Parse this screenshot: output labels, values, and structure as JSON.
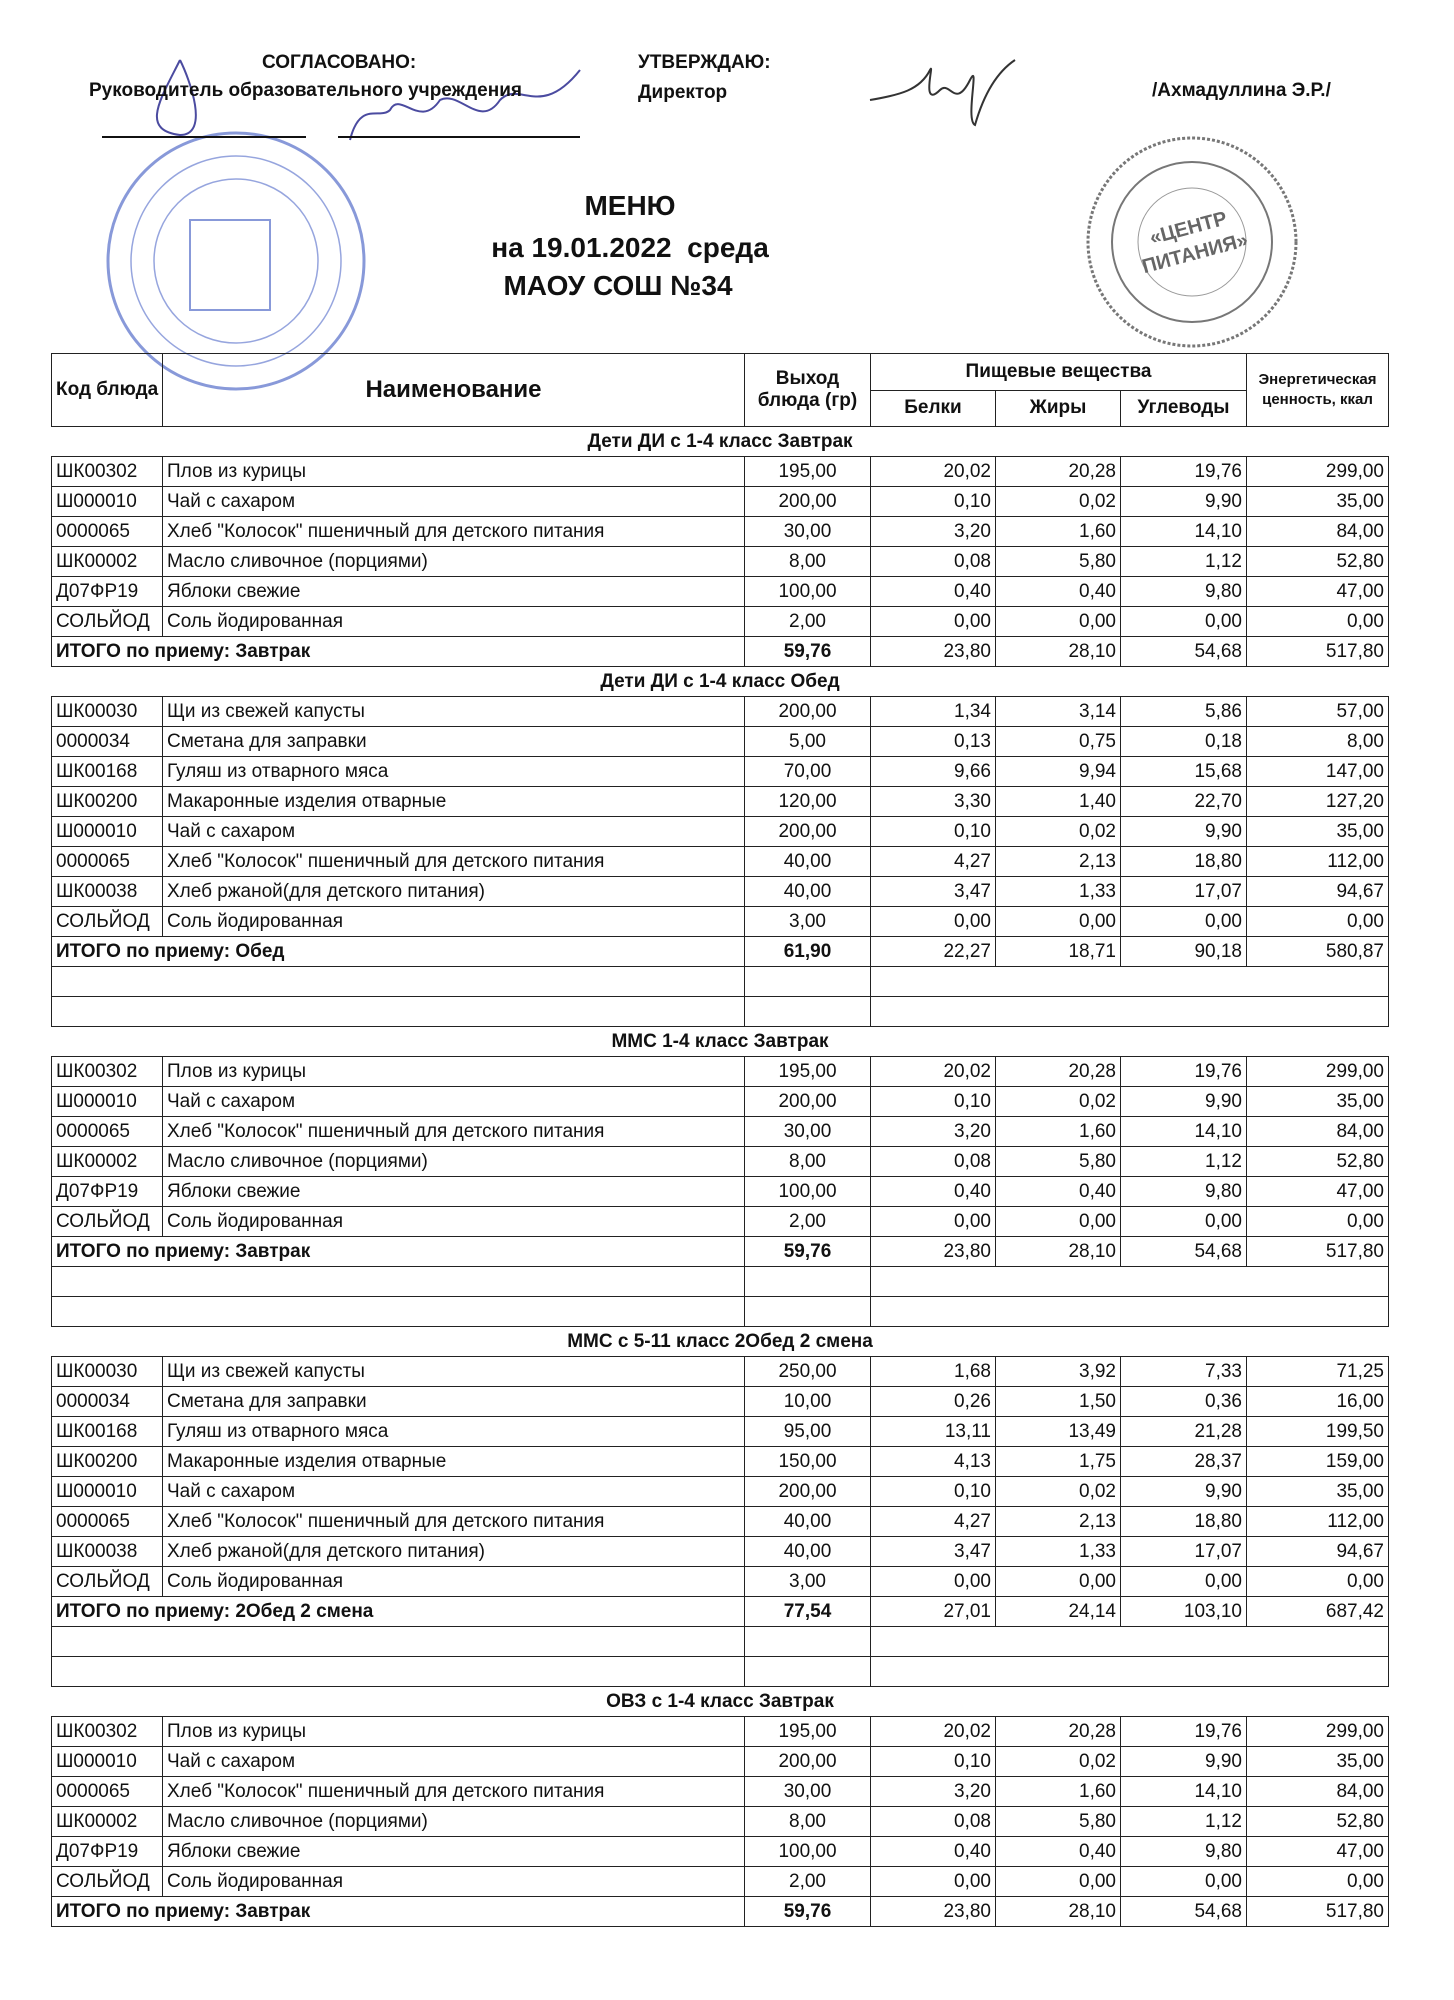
{
  "approval": {
    "agreed_label": "СОГЛАСОВАНО:",
    "agreed_role": "Руководитель образовательного учреждения",
    "approve_label": "УТВЕРЖДАЮ:",
    "approve_role": "Директор",
    "director_name": "/Ахмадуллина Э.Р./"
  },
  "stamp_text": "«ЦЕНТР ПИТАНИЯ»",
  "title": {
    "line1": "МЕНЮ",
    "line2": "на 19.01.2022  среда",
    "line3": "МАОУ СОШ №34"
  },
  "colors": {
    "stamp_blue": "#6a7fd0",
    "stamp_gray": "#777777"
  },
  "table": {
    "headers": {
      "code": "Код блюда",
      "name": "Наименование",
      "yield": "Выход блюда (гр)",
      "nutrients": "Пищевые вещества",
      "protein": "Белки",
      "fat": "Жиры",
      "carbs": "Углеводы",
      "energy": "Энергетическая ценность, ккал"
    },
    "sections": [
      {
        "title": "Дети ДИ с 1-4 класс Завтрак",
        "rows": [
          [
            "ШК00302",
            "Плов из курицы",
            "195,00",
            "20,02",
            "20,28",
            "19,76",
            "299,00"
          ],
          [
            "Ш000010",
            "Чай с сахаром",
            "200,00",
            "0,10",
            "0,02",
            "9,90",
            "35,00"
          ],
          [
            "0000065",
            "Хлеб \"Колосок\" пшеничный для детского питания",
            "30,00",
            "3,20",
            "1,60",
            "14,10",
            "84,00"
          ],
          [
            "ШК00002",
            "Масло сливочное (порциями)",
            "8,00",
            "0,08",
            "5,80",
            "1,12",
            "52,80"
          ],
          [
            "Д07ФР19",
            "Яблоки свежие",
            "100,00",
            "0,40",
            "0,40",
            "9,80",
            "47,00"
          ],
          [
            "СОЛЬЙОД",
            "Соль йодированная",
            "2,00",
            "0,00",
            "0,00",
            "0,00",
            "0,00"
          ]
        ],
        "total": [
          "ИТОГО по приему: Завтрак",
          "59,76",
          "23,80",
          "28,10",
          "54,68",
          "517,80"
        ],
        "blank_rows": 0
      },
      {
        "title": "Дети ДИ с 1-4 класс Обед",
        "rows": [
          [
            "ШК00030",
            "Щи из свежей капусты",
            "200,00",
            "1,34",
            "3,14",
            "5,86",
            "57,00"
          ],
          [
            "0000034",
            "Сметана для заправки",
            "5,00",
            "0,13",
            "0,75",
            "0,18",
            "8,00"
          ],
          [
            "ШК00168",
            "Гуляш из отварного мяса",
            "70,00",
            "9,66",
            "9,94",
            "15,68",
            "147,00"
          ],
          [
            "ШК00200",
            "Макаронные изделия отварные",
            "120,00",
            "3,30",
            "1,40",
            "22,70",
            "127,20"
          ],
          [
            "Ш000010",
            "Чай с сахаром",
            "200,00",
            "0,10",
            "0,02",
            "9,90",
            "35,00"
          ],
          [
            "0000065",
            "Хлеб \"Колосок\" пшеничный для детского питания",
            "40,00",
            "4,27",
            "2,13",
            "18,80",
            "112,00"
          ],
          [
            "ШК00038",
            "Хлеб ржаной(для детского питания)",
            "40,00",
            "3,47",
            "1,33",
            "17,07",
            "94,67"
          ],
          [
            "СОЛЬЙОД",
            "Соль йодированная",
            "3,00",
            "0,00",
            "0,00",
            "0,00",
            "0,00"
          ]
        ],
        "total": [
          "ИТОГО по приему: Обед",
          "61,90",
          "22,27",
          "18,71",
          "90,18",
          "580,87"
        ],
        "blank_rows": 2
      },
      {
        "title": "ММС 1-4 класс Завтрак",
        "rows": [
          [
            "ШК00302",
            "Плов из курицы",
            "195,00",
            "20,02",
            "20,28",
            "19,76",
            "299,00"
          ],
          [
            "Ш000010",
            "Чай с сахаром",
            "200,00",
            "0,10",
            "0,02",
            "9,90",
            "35,00"
          ],
          [
            "0000065",
            "Хлеб \"Колосок\" пшеничный для детского питания",
            "30,00",
            "3,20",
            "1,60",
            "14,10",
            "84,00"
          ],
          [
            "ШК00002",
            "Масло сливочное (порциями)",
            "8,00",
            "0,08",
            "5,80",
            "1,12",
            "52,80"
          ],
          [
            "Д07ФР19",
            "Яблоки свежие",
            "100,00",
            "0,40",
            "0,40",
            "9,80",
            "47,00"
          ],
          [
            "СОЛЬЙОД",
            "Соль йодированная",
            "2,00",
            "0,00",
            "0,00",
            "0,00",
            "0,00"
          ]
        ],
        "total": [
          "ИТОГО по приему: Завтрак",
          "59,76",
          "23,80",
          "28,10",
          "54,68",
          "517,80"
        ],
        "blank_rows": 2
      },
      {
        "title": "ММС с 5-11 класс 2Обед 2 смена",
        "rows": [
          [
            "ШК00030",
            "Щи из свежей капусты",
            "250,00",
            "1,68",
            "3,92",
            "7,33",
            "71,25"
          ],
          [
            "0000034",
            "Сметана для заправки",
            "10,00",
            "0,26",
            "1,50",
            "0,36",
            "16,00"
          ],
          [
            "ШК00168",
            "Гуляш из отварного мяса",
            "95,00",
            "13,11",
            "13,49",
            "21,28",
            "199,50"
          ],
          [
            "ШК00200",
            "Макаронные изделия отварные",
            "150,00",
            "4,13",
            "1,75",
            "28,37",
            "159,00"
          ],
          [
            "Ш000010",
            "Чай с сахаром",
            "200,00",
            "0,10",
            "0,02",
            "9,90",
            "35,00"
          ],
          [
            "0000065",
            "Хлеб \"Колосок\" пшеничный для детского питания",
            "40,00",
            "4,27",
            "2,13",
            "18,80",
            "112,00"
          ],
          [
            "ШК00038",
            "Хлеб ржаной(для детского питания)",
            "40,00",
            "3,47",
            "1,33",
            "17,07",
            "94,67"
          ],
          [
            "СОЛЬЙОД",
            "Соль йодированная",
            "3,00",
            "0,00",
            "0,00",
            "0,00",
            "0,00"
          ]
        ],
        "total": [
          "ИТОГО по приему: 2Обед 2 смена",
          "77,54",
          "27,01",
          "24,14",
          "103,10",
          "687,42"
        ],
        "blank_rows": 2
      },
      {
        "title": "ОВЗ с 1-4 класс Завтрак",
        "rows": [
          [
            "ШК00302",
            "Плов из курицы",
            "195,00",
            "20,02",
            "20,28",
            "19,76",
            "299,00"
          ],
          [
            "Ш000010",
            "Чай с сахаром",
            "200,00",
            "0,10",
            "0,02",
            "9,90",
            "35,00"
          ],
          [
            "0000065",
            "Хлеб \"Колосок\" пшеничный для детского питания",
            "30,00",
            "3,20",
            "1,60",
            "14,10",
            "84,00"
          ],
          [
            "ШК00002",
            "Масло сливочное (порциями)",
            "8,00",
            "0,08",
            "5,80",
            "1,12",
            "52,80"
          ],
          [
            "Д07ФР19",
            "Яблоки свежие",
            "100,00",
            "0,40",
            "0,40",
            "9,80",
            "47,00"
          ],
          [
            "СОЛЬЙОД",
            "Соль йодированная",
            "2,00",
            "0,00",
            "0,00",
            "0,00",
            "0,00"
          ]
        ],
        "total": [
          "ИТОГО по приему: Завтрак",
          "59,76",
          "23,80",
          "28,10",
          "54,68",
          "517,80"
        ],
        "blank_rows": 0
      }
    ]
  }
}
